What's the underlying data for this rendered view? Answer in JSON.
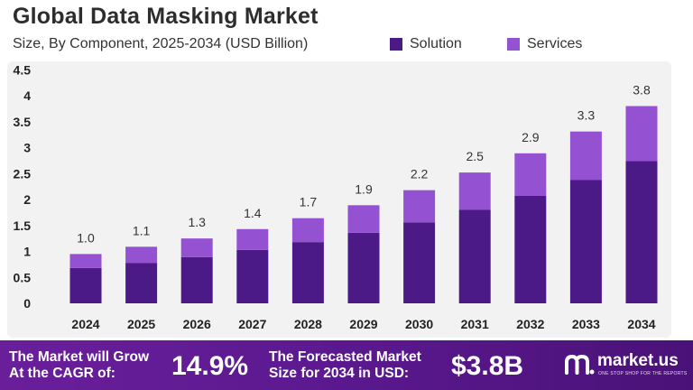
{
  "header": {
    "title": "Global Data Masking Market",
    "subtitle": "Size, By Component, 2025-2034 (USD Billion)"
  },
  "legend": [
    {
      "label": "Solution",
      "color": "#4b1a86"
    },
    {
      "label": "Services",
      "color": "#9452d3"
    }
  ],
  "chart_data": {
    "type": "bar",
    "stacked": true,
    "categories": [
      "2024",
      "2025",
      "2026",
      "2027",
      "2028",
      "2029",
      "2030",
      "2031",
      "2032",
      "2033",
      "2034"
    ],
    "series": [
      {
        "name": "Solution",
        "color": "#4b1a86",
        "values": [
          0.68,
          0.78,
          0.89,
          1.03,
          1.18,
          1.36,
          1.56,
          1.8,
          2.07,
          2.38,
          2.74
        ]
      },
      {
        "name": "Services",
        "color": "#9452d3",
        "values": [
          0.27,
          0.31,
          0.36,
          0.4,
          0.46,
          0.53,
          0.62,
          0.72,
          0.82,
          0.93,
          1.06
        ]
      }
    ],
    "total_labels": [
      "1.0",
      "1.1",
      "1.3",
      "1.4",
      "1.7",
      "1.9",
      "2.2",
      "2.5",
      "2.9",
      "3.3",
      "3.8"
    ],
    "y_ticks": [
      "0",
      "0.5",
      "1",
      "1.5",
      "2",
      "2.5",
      "3",
      "3.5",
      "4",
      "4.5"
    ],
    "ylim": [
      0,
      4.5
    ],
    "grid": false,
    "legend_position": "top-right"
  },
  "footer": {
    "cagr_text_line1": "The Market will Grow",
    "cagr_text_line2": "At the CAGR of:",
    "cagr_value": "14.9%",
    "forecast_text_line1": "The Forecasted Market",
    "forecast_text_line2": "Size for 2034 in USD:",
    "forecast_value": "$3.8B",
    "brand_name": "market.us",
    "brand_tagline": "ONE STOP SHOP FOR THE REPORTS"
  }
}
